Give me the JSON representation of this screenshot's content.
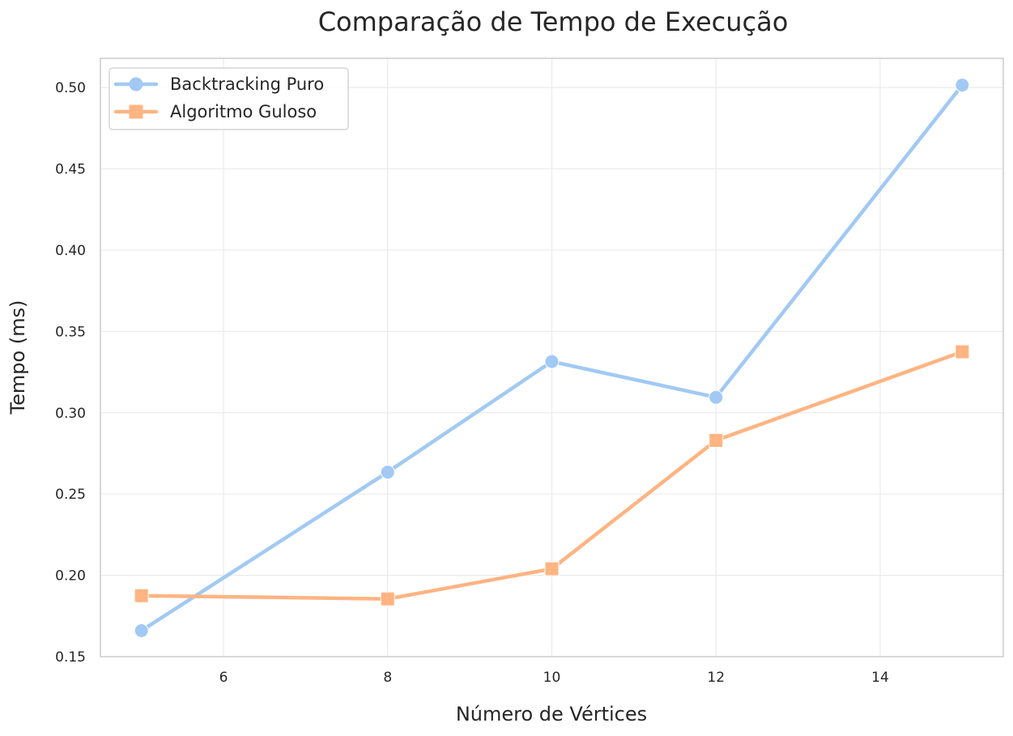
{
  "chart_data": {
    "type": "line",
    "title": "Comparação de Tempo de Execução",
    "xlabel": "Número de Vértices",
    "ylabel": "Tempo (ms)",
    "x": [
      5,
      8,
      10,
      12,
      15
    ],
    "xlim": [
      4.5,
      15.5
    ],
    "ylim": [
      0.15,
      0.518
    ],
    "xticks": [
      6,
      8,
      10,
      12,
      14
    ],
    "yticks": [
      0.15,
      0.2,
      0.25,
      0.3,
      0.35,
      0.4,
      0.45,
      0.5
    ],
    "xtick_labels": [
      "6",
      "8",
      "10",
      "12",
      "14"
    ],
    "ytick_labels": [
      "0.15",
      "0.20",
      "0.25",
      "0.30",
      "0.35",
      "0.40",
      "0.45",
      "0.50"
    ],
    "grid": true,
    "legend_position": "top-left",
    "series": [
      {
        "name": "Backtracking Puro",
        "values": [
          0.166,
          0.2635,
          0.3315,
          0.3095,
          0.5015
        ],
        "color": "#a1c9f4",
        "marker": "circle"
      },
      {
        "name": "Algoritmo Guloso",
        "values": [
          0.1875,
          0.1855,
          0.204,
          0.283,
          0.3375
        ],
        "color": "#ffb482",
        "marker": "square"
      }
    ]
  }
}
